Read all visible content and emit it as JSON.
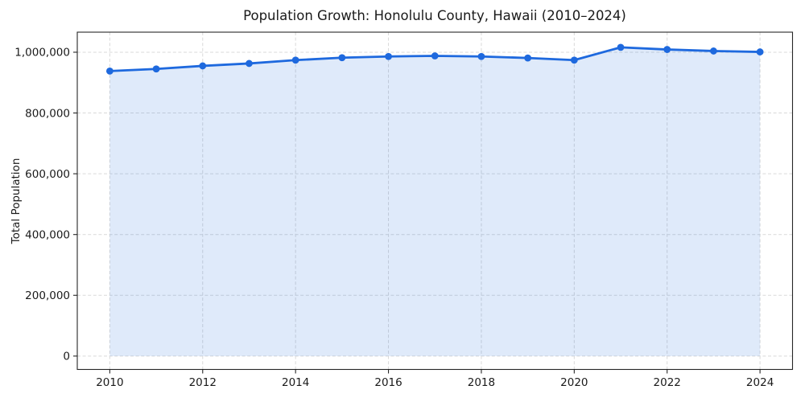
{
  "figure": {
    "background": "#ffffff"
  },
  "chart_data": {
    "type": "area",
    "title": "Population Growth: Honolulu County, Hawaii (2010–2024)",
    "xlabel": "",
    "ylabel": "Total Population",
    "x": [
      2010,
      2011,
      2012,
      2013,
      2014,
      2015,
      2016,
      2017,
      2018,
      2019,
      2020,
      2021,
      2022,
      2023,
      2024
    ],
    "values": [
      938000,
      945000,
      955000,
      963000,
      974000,
      982000,
      986000,
      988000,
      986000,
      981000,
      974000,
      1016000,
      1009000,
      1004000,
      1001000
    ],
    "series_name": "Total Population",
    "xlim": [
      2009.3,
      2024.7
    ],
    "ylim": [
      -44000,
      1066000
    ],
    "xticks": {
      "values": [
        2010,
        2012,
        2014,
        2016,
        2018,
        2020,
        2022,
        2024
      ],
      "labels": [
        "2010",
        "2012",
        "2014",
        "2016",
        "2018",
        "2020",
        "2022",
        "2024"
      ]
    },
    "yticks": {
      "values": [
        0,
        200000,
        400000,
        600000,
        800000,
        1000000
      ],
      "labels": [
        "0",
        "200,000",
        "400,000",
        "600,000",
        "800,000",
        "1,000,000"
      ]
    },
    "grid": true,
    "legend": false,
    "marker": "circle",
    "colors": {
      "line": "#1e69de",
      "fill": "#1e69de",
      "fill_opacity": 0.14,
      "grid": "#d9d9d9",
      "axis": "#262626",
      "text": "#1a1a1a"
    }
  }
}
